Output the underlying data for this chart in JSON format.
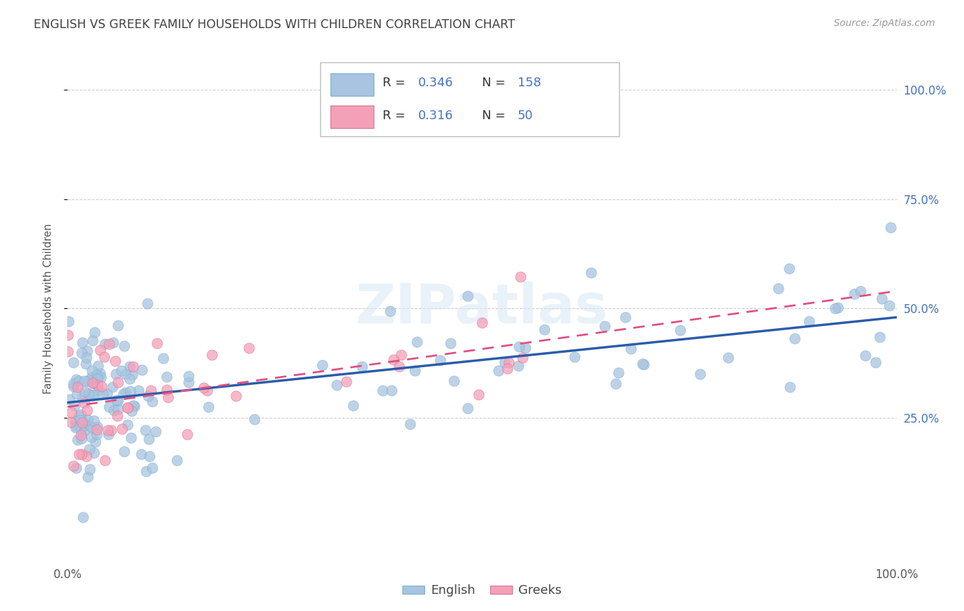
{
  "title": "ENGLISH VS GREEK FAMILY HOUSEHOLDS WITH CHILDREN CORRELATION CHART",
  "source": "Source: ZipAtlas.com",
  "ylabel": "Family Households with Children",
  "watermark": "ZIPatlas",
  "english_R": "0.346",
  "english_N": "158",
  "greek_R": "0.316",
  "greek_N": "50",
  "english_dot_color": "#a8c4e0",
  "english_line_color": "#2a5caa",
  "greek_dot_color": "#f4a0b8",
  "greek_line_color": "#e05080",
  "legend_text_color": "#4472c4",
  "title_color": "#404040",
  "grid_color": "#cccccc",
  "background_color": "#ffffff",
  "xlim": [
    0.0,
    1.0
  ],
  "ylim": [
    -0.05,
    1.05
  ],
  "english_line_intercept": 0.285,
  "english_line_slope": 0.195,
  "greek_line_intercept": 0.275,
  "greek_line_slope": 0.265
}
